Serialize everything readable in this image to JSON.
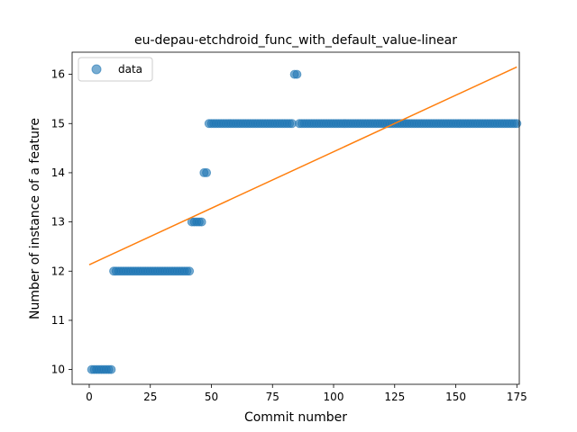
{
  "chart_data": {
    "type": "scatter",
    "title": "eu-depau-etchdroid_func_with_default_value-linear",
    "xlabel": "Commit number",
    "ylabel": "Number of instance of a feature",
    "xlim": [
      -7,
      176
    ],
    "ylim": [
      9.7,
      16.45
    ],
    "xticks": [
      0,
      25,
      50,
      75,
      100,
      125,
      150,
      175
    ],
    "yticks": [
      10,
      11,
      12,
      13,
      14,
      15,
      16
    ],
    "grid": false,
    "legend_position": "upper-left",
    "colors": {
      "scatter": "#1f77b4",
      "fit": "#ff7f0e"
    },
    "series": [
      {
        "name": "data",
        "kind": "scatter",
        "points": [
          [
            1,
            10
          ],
          [
            2,
            10
          ],
          [
            3,
            10
          ],
          [
            4,
            10
          ],
          [
            5,
            10
          ],
          [
            6,
            10
          ],
          [
            7,
            10
          ],
          [
            8,
            10
          ],
          [
            9,
            10
          ],
          [
            10,
            12
          ],
          [
            11,
            12
          ],
          [
            12,
            12
          ],
          [
            13,
            12
          ],
          [
            14,
            12
          ],
          [
            15,
            12
          ],
          [
            16,
            12
          ],
          [
            17,
            12
          ],
          [
            18,
            12
          ],
          [
            19,
            12
          ],
          [
            20,
            12
          ],
          [
            21,
            12
          ],
          [
            22,
            12
          ],
          [
            23,
            12
          ],
          [
            24,
            12
          ],
          [
            25,
            12
          ],
          [
            26,
            12
          ],
          [
            27,
            12
          ],
          [
            28,
            12
          ],
          [
            29,
            12
          ],
          [
            30,
            12
          ],
          [
            31,
            12
          ],
          [
            32,
            12
          ],
          [
            33,
            12
          ],
          [
            34,
            12
          ],
          [
            35,
            12
          ],
          [
            36,
            12
          ],
          [
            37,
            12
          ],
          [
            38,
            12
          ],
          [
            39,
            12
          ],
          [
            40,
            12
          ],
          [
            41,
            12
          ],
          [
            42,
            13
          ],
          [
            43,
            13
          ],
          [
            44,
            13
          ],
          [
            45,
            13
          ],
          [
            46,
            13
          ],
          [
            47,
            14
          ],
          [
            48,
            14
          ],
          [
            49,
            15
          ],
          [
            50,
            15
          ],
          [
            51,
            15
          ],
          [
            52,
            15
          ],
          [
            53,
            15
          ],
          [
            54,
            15
          ],
          [
            55,
            15
          ],
          [
            56,
            15
          ],
          [
            57,
            15
          ],
          [
            58,
            15
          ],
          [
            59,
            15
          ],
          [
            60,
            15
          ],
          [
            61,
            15
          ],
          [
            62,
            15
          ],
          [
            63,
            15
          ],
          [
            64,
            15
          ],
          [
            65,
            15
          ],
          [
            66,
            15
          ],
          [
            67,
            15
          ],
          [
            68,
            15
          ],
          [
            69,
            15
          ],
          [
            70,
            15
          ],
          [
            71,
            15
          ],
          [
            72,
            15
          ],
          [
            73,
            15
          ],
          [
            74,
            15
          ],
          [
            75,
            15
          ],
          [
            76,
            15
          ],
          [
            77,
            15
          ],
          [
            78,
            15
          ],
          [
            79,
            15
          ],
          [
            80,
            15
          ],
          [
            81,
            15
          ],
          [
            82,
            15
          ],
          [
            83,
            15
          ],
          [
            84,
            16
          ],
          [
            85,
            16
          ],
          [
            86,
            15
          ],
          [
            87,
            15
          ],
          [
            88,
            15
          ],
          [
            89,
            15
          ],
          [
            90,
            15
          ],
          [
            91,
            15
          ],
          [
            92,
            15
          ],
          [
            93,
            15
          ],
          [
            94,
            15
          ],
          [
            95,
            15
          ],
          [
            96,
            15
          ],
          [
            97,
            15
          ],
          [
            98,
            15
          ],
          [
            99,
            15
          ],
          [
            100,
            15
          ],
          [
            101,
            15
          ],
          [
            102,
            15
          ],
          [
            103,
            15
          ],
          [
            104,
            15
          ],
          [
            105,
            15
          ],
          [
            106,
            15
          ],
          [
            107,
            15
          ],
          [
            108,
            15
          ],
          [
            109,
            15
          ],
          [
            110,
            15
          ],
          [
            111,
            15
          ],
          [
            112,
            15
          ],
          [
            113,
            15
          ],
          [
            114,
            15
          ],
          [
            115,
            15
          ],
          [
            116,
            15
          ],
          [
            117,
            15
          ],
          [
            118,
            15
          ],
          [
            119,
            15
          ],
          [
            120,
            15
          ],
          [
            121,
            15
          ],
          [
            122,
            15
          ],
          [
            123,
            15
          ],
          [
            124,
            15
          ],
          [
            125,
            15
          ],
          [
            126,
            15
          ],
          [
            127,
            15
          ],
          [
            128,
            15
          ],
          [
            129,
            15
          ],
          [
            130,
            15
          ],
          [
            131,
            15
          ],
          [
            132,
            15
          ],
          [
            133,
            15
          ],
          [
            134,
            15
          ],
          [
            135,
            15
          ],
          [
            136,
            15
          ],
          [
            137,
            15
          ],
          [
            138,
            15
          ],
          [
            139,
            15
          ],
          [
            140,
            15
          ],
          [
            141,
            15
          ],
          [
            142,
            15
          ],
          [
            143,
            15
          ],
          [
            144,
            15
          ],
          [
            145,
            15
          ],
          [
            146,
            15
          ],
          [
            147,
            15
          ],
          [
            148,
            15
          ],
          [
            149,
            15
          ],
          [
            150,
            15
          ],
          [
            151,
            15
          ],
          [
            152,
            15
          ],
          [
            153,
            15
          ],
          [
            154,
            15
          ],
          [
            155,
            15
          ],
          [
            156,
            15
          ],
          [
            157,
            15
          ],
          [
            158,
            15
          ],
          [
            159,
            15
          ],
          [
            160,
            15
          ],
          [
            161,
            15
          ],
          [
            162,
            15
          ],
          [
            163,
            15
          ],
          [
            164,
            15
          ],
          [
            165,
            15
          ],
          [
            166,
            15
          ],
          [
            167,
            15
          ],
          [
            168,
            15
          ],
          [
            169,
            15
          ],
          [
            170,
            15
          ],
          [
            171,
            15
          ],
          [
            172,
            15
          ],
          [
            173,
            15
          ],
          [
            174,
            15
          ],
          [
            175,
            15
          ]
        ]
      },
      {
        "kind": "line",
        "x": [
          0,
          175
        ],
        "y": [
          12.13,
          16.15
        ]
      }
    ]
  }
}
